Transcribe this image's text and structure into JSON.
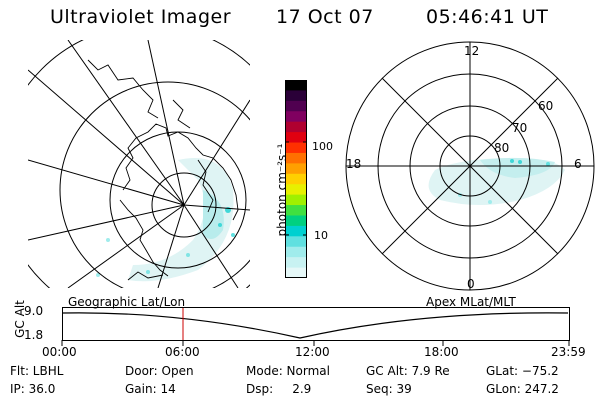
{
  "header": {
    "title": "Ultraviolet Imager",
    "date": "17 Oct 07",
    "time": "05:46:41 UT"
  },
  "colorbar": {
    "label": "photon cm⁻²s⁻¹",
    "ticks": [
      "100",
      "10"
    ],
    "colors": [
      "#000000",
      "#2a0038",
      "#500050",
      "#800060",
      "#b00030",
      "#e00010",
      "#ff3000",
      "#ff7000",
      "#ffa000",
      "#ffd000",
      "#e8f000",
      "#a0f000",
      "#40e040",
      "#00d080",
      "#00d0d0",
      "#60e0e0",
      "#a0ecec",
      "#c8f2f2",
      "#e6f8f8"
    ]
  },
  "left_map": {
    "name": "Geographic Lat/Lon"
  },
  "right_map": {
    "name": "Apex MLat/MLT",
    "mlt_labels": {
      "top": "12",
      "left": "18",
      "right": "6",
      "bottom": "0"
    },
    "lat_labels": [
      "60",
      "70",
      "80"
    ]
  },
  "altitude_plot": {
    "ylabel": "GC Alt",
    "yticks": [
      "9.0",
      "1.8"
    ],
    "xticks": [
      "00:00",
      "06:00",
      "12:00",
      "18:00",
      "23:59"
    ],
    "marker_color": "#cc0000"
  },
  "info": {
    "flt": "Flt: LBHL",
    "door": "Door: Open",
    "mode": "Mode: Normal",
    "gc_alt": "GC Alt: 7.9 Re",
    "glat": "GLat: −75.2",
    "ip": "IP: 36.0",
    "gain": "Gain: 14",
    "dsp": "Dsp:     2.9",
    "seq": "Seq: 39",
    "glon": "GLon: 247.2"
  }
}
